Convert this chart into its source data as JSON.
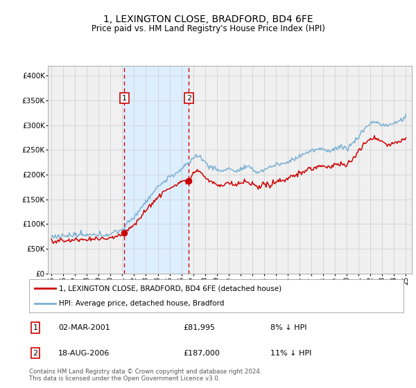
{
  "title": "1, LEXINGTON CLOSE, BRADFORD, BD4 6FE",
  "subtitle": "Price paid vs. HM Land Registry's House Price Index (HPI)",
  "legend_line1": "1, LEXINGTON CLOSE, BRADFORD, BD4 6FE (detached house)",
  "legend_line2": "HPI: Average price, detached house, Bradford",
  "footer": "Contains HM Land Registry data © Crown copyright and database right 2024.\nThis data is licensed under the Open Government Licence v3.0.",
  "sale1_date": "02-MAR-2001",
  "sale1_price": "£81,995",
  "sale1_hpi": "8% ↓ HPI",
  "sale2_date": "18-AUG-2006",
  "sale2_price": "£187,000",
  "sale2_hpi": "11% ↓ HPI",
  "sale1_year": 2001.17,
  "sale1_value": 81995,
  "sale2_year": 2006.63,
  "sale2_value": 187000,
  "red_line_color": "#cc0000",
  "blue_line_color": "#7ab0d4",
  "shade_color": "#ddeeff",
  "dashed_line_color": "#cc0000",
  "grid_color": "#cccccc",
  "background_color": "#f0f0f0",
  "box_color": "#cc0000",
  "ylim": [
    0,
    420000
  ],
  "xlim_start": 1994.7,
  "xlim_end": 2025.5,
  "yticks": [
    0,
    50000,
    100000,
    150000,
    200000,
    250000,
    300000,
    350000,
    400000
  ],
  "ytick_labels": [
    "£0",
    "£50K",
    "£100K",
    "£150K",
    "£200K",
    "£250K",
    "£300K",
    "£350K",
    "£400K"
  ],
  "xticks": [
    1995,
    1996,
    1997,
    1998,
    1999,
    2000,
    2001,
    2002,
    2003,
    2004,
    2005,
    2006,
    2007,
    2008,
    2009,
    2010,
    2011,
    2012,
    2013,
    2014,
    2015,
    2016,
    2017,
    2018,
    2019,
    2020,
    2021,
    2022,
    2023,
    2024,
    2025
  ]
}
